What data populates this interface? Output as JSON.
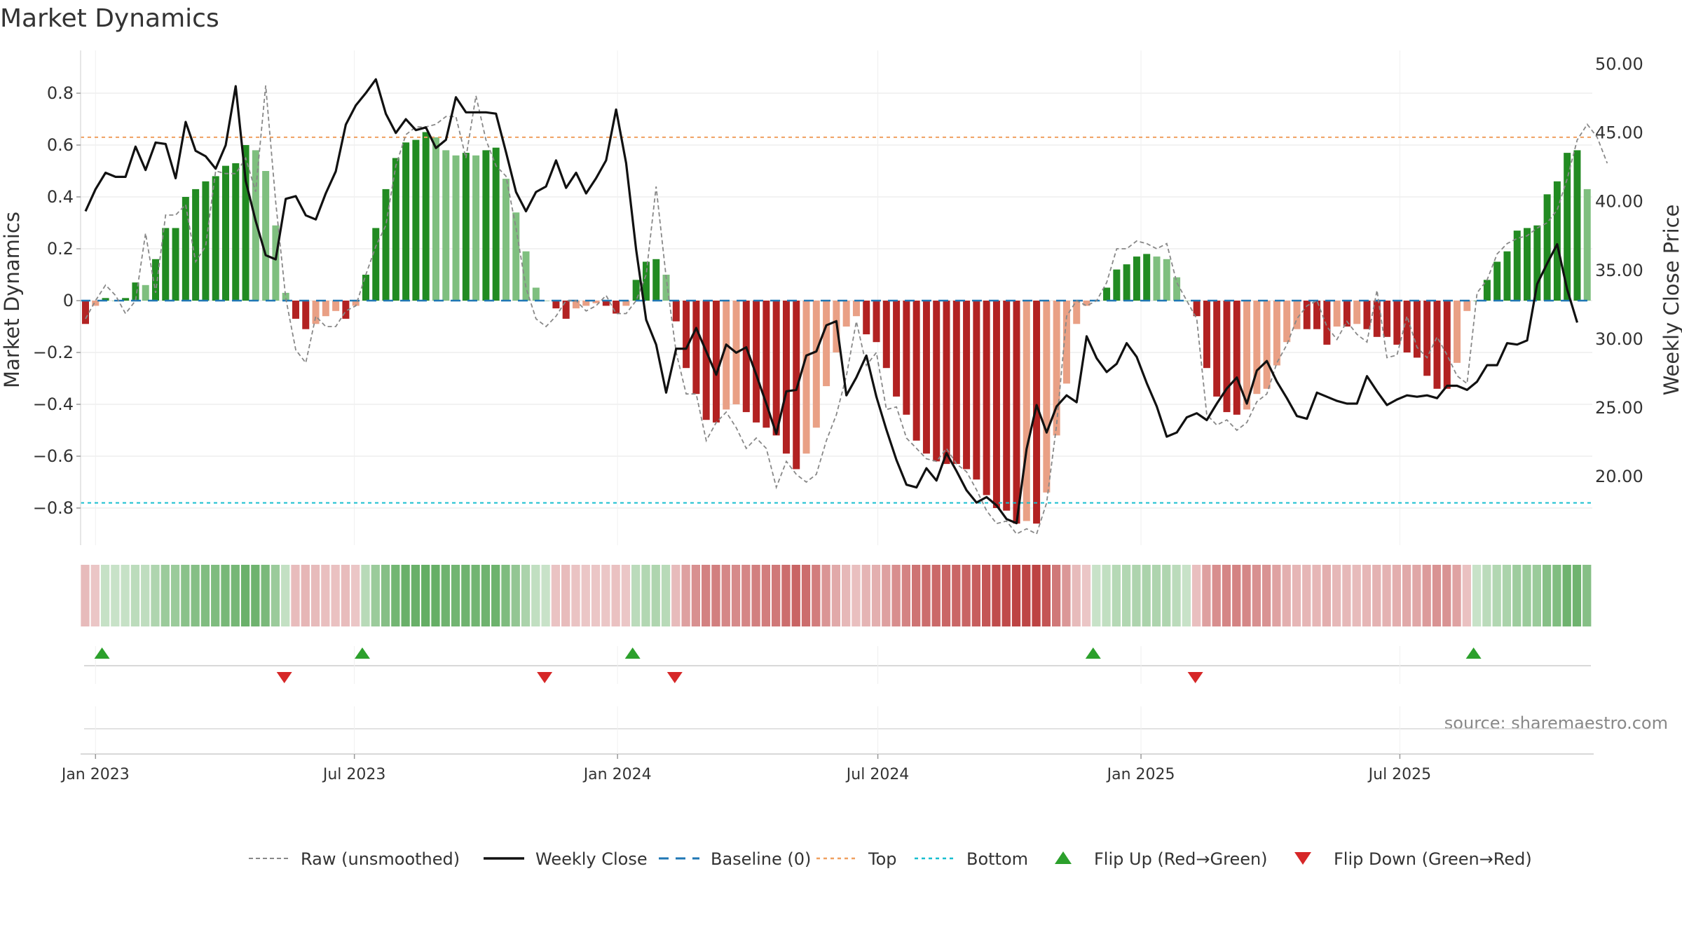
{
  "chart_data": {
    "type": "bar",
    "title": "Market Dynamics",
    "ylabel_left": "Market Dynamics",
    "ylabel_right": "Weekly Close Price",
    "ylim_left": [
      -0.93,
      0.96
    ],
    "ylim_right": [
      15.0,
      51.0
    ],
    "yticks_left": [
      0.8,
      0.6,
      0.4,
      0.2,
      0,
      -0.2,
      -0.4,
      -0.6,
      -0.8
    ],
    "yticks_left_labels": [
      "0.8",
      "0.6",
      "0.4",
      "0.2",
      "0",
      "−0.2",
      "−0.4",
      "−0.6",
      "−0.8"
    ],
    "yticks_right": [
      50,
      45,
      40,
      35,
      30,
      25,
      20
    ],
    "yticks_right_labels": [
      "50.00",
      "45.00",
      "40.00",
      "35.00",
      "30.00",
      "25.00",
      "20.00"
    ],
    "x_start": "2022-12-25",
    "x_step_days": 7,
    "xticks": [
      {
        "date": "2023-01-01",
        "label": "Jan 2023"
      },
      {
        "date": "2023-07-01",
        "label": "Jul 2023"
      },
      {
        "date": "2024-01-01",
        "label": "Jan 2024"
      },
      {
        "date": "2024-07-01",
        "label": "Jul 2024"
      },
      {
        "date": "2025-01-01",
        "label": "Jan 2025"
      },
      {
        "date": "2025-07-01",
        "label": "Jul 2025"
      }
    ],
    "top_level": 0.63,
    "bottom_level": -0.78,
    "bars": [
      -0.09,
      -0.02,
      0.01,
      0.0,
      0.01,
      0.07,
      0.06,
      0.16,
      0.28,
      0.28,
      0.4,
      0.43,
      0.46,
      0.48,
      0.52,
      0.53,
      0.6,
      0.58,
      0.5,
      0.29,
      0.03,
      -0.07,
      -0.11,
      -0.09,
      -0.06,
      -0.04,
      -0.07,
      -0.02,
      0.1,
      0.28,
      0.43,
      0.55,
      0.61,
      0.62,
      0.65,
      0.63,
      0.58,
      0.56,
      0.57,
      0.56,
      0.58,
      0.59,
      0.47,
      0.34,
      0.19,
      0.05,
      0.0,
      -0.03,
      -0.07,
      -0.03,
      -0.02,
      -0.01,
      -0.02,
      -0.05,
      -0.02,
      0.08,
      0.15,
      0.16,
      0.1,
      -0.08,
      -0.26,
      -0.36,
      -0.46,
      -0.47,
      -0.42,
      -0.4,
      -0.43,
      -0.47,
      -0.49,
      -0.52,
      -0.59,
      -0.65,
      -0.59,
      -0.49,
      -0.33,
      -0.2,
      -0.1,
      -0.06,
      -0.13,
      -0.16,
      -0.26,
      -0.37,
      -0.44,
      -0.54,
      -0.59,
      -0.62,
      -0.63,
      -0.63,
      -0.65,
      -0.69,
      -0.75,
      -0.8,
      -0.81,
      -0.86,
      -0.85,
      -0.86,
      -0.74,
      -0.52,
      -0.32,
      -0.09,
      -0.02,
      0.0,
      0.05,
      0.12,
      0.14,
      0.17,
      0.18,
      0.17,
      0.16,
      0.09,
      0.0,
      -0.06,
      -0.26,
      -0.37,
      -0.43,
      -0.44,
      -0.42,
      -0.36,
      -0.34,
      -0.25,
      -0.16,
      -0.11,
      -0.11,
      -0.11,
      -0.17,
      -0.1,
      -0.1,
      -0.09,
      -0.11,
      -0.14,
      -0.14,
      -0.17,
      -0.2,
      -0.22,
      -0.29,
      -0.34,
      -0.34,
      -0.24,
      -0.04,
      0.0,
      0.08,
      0.15,
      0.19,
      0.27,
      0.28,
      0.29,
      0.41,
      0.46,
      0.57,
      0.58,
      0.43
    ],
    "raw": [
      -0.07,
      0.0,
      0.06,
      0.02,
      -0.05,
      0.0,
      0.26,
      0.03,
      0.33,
      0.33,
      0.37,
      0.15,
      0.21,
      0.5,
      0.49,
      0.49,
      0.55,
      0.42,
      0.83,
      0.38,
      0.01,
      -0.19,
      -0.24,
      -0.06,
      -0.1,
      -0.1,
      -0.04,
      -0.02,
      0.1,
      0.21,
      0.29,
      0.52,
      0.64,
      0.67,
      0.67,
      0.68,
      0.71,
      0.71,
      0.55,
      0.79,
      0.62,
      0.52,
      0.48,
      0.28,
      0.05,
      -0.07,
      -0.1,
      -0.06,
      0.0,
      0.0,
      -0.04,
      -0.02,
      0.02,
      -0.05,
      -0.05,
      0.0,
      0.1,
      0.44,
      0.09,
      -0.2,
      -0.36,
      -0.36,
      -0.54,
      -0.47,
      -0.43,
      -0.49,
      -0.57,
      -0.53,
      -0.57,
      -0.72,
      -0.62,
      -0.67,
      -0.7,
      -0.67,
      -0.54,
      -0.44,
      -0.29,
      -0.08,
      -0.25,
      -0.2,
      -0.42,
      -0.41,
      -0.53,
      -0.57,
      -0.61,
      -0.62,
      -0.57,
      -0.63,
      -0.66,
      -0.73,
      -0.81,
      -0.86,
      -0.85,
      -0.9,
      -0.88,
      -0.9,
      -0.78,
      -0.48,
      -0.06,
      0.0,
      -0.02,
      0.0,
      0.07,
      0.2,
      0.2,
      0.23,
      0.22,
      0.2,
      0.22,
      0.07,
      0.0,
      -0.07,
      -0.44,
      -0.48,
      -0.46,
      -0.5,
      -0.47,
      -0.39,
      -0.36,
      -0.24,
      -0.17,
      -0.07,
      -0.02,
      0.0,
      -0.1,
      -0.15,
      -0.08,
      -0.13,
      -0.16,
      0.04,
      -0.22,
      -0.21,
      -0.06,
      -0.18,
      -0.22,
      -0.14,
      -0.21,
      -0.29,
      -0.32,
      0.03,
      0.08,
      0.18,
      0.22,
      0.24,
      0.25,
      0.28,
      0.3,
      0.35,
      0.47,
      0.62,
      0.68,
      0.63,
      0.53
    ],
    "price": [
      39.3,
      40.9,
      42.1,
      41.8,
      41.8,
      44.0,
      42.3,
      44.3,
      44.2,
      41.7,
      45.8,
      43.7,
      43.3,
      42.4,
      44.1,
      48.4,
      41.5,
      38.6,
      36.1,
      35.8,
      40.2,
      40.4,
      39.0,
      38.7,
      40.6,
      42.2,
      45.6,
      47.0,
      47.9,
      48.9,
      46.4,
      45.0,
      46.0,
      45.2,
      45.4,
      43.9,
      44.5,
      47.6,
      46.5,
      46.5,
      46.5,
      46.4,
      43.6,
      40.7,
      39.3,
      40.7,
      41.1,
      43.0,
      41.0,
      42.1,
      40.6,
      41.7,
      43.0,
      46.7,
      42.8,
      36.5,
      31.4,
      29.6,
      26.1,
      29.3,
      29.3,
      30.8,
      29.1,
      27.4,
      29.6,
      29.0,
      29.4,
      27.4,
      25.3,
      23.1,
      26.2,
      26.3,
      28.8,
      29.1,
      31.0,
      31.3,
      25.9,
      27.2,
      28.8,
      25.8,
      23.4,
      21.2,
      19.4,
      19.2,
      20.6,
      19.7,
      21.7,
      20.4,
      19.0,
      18.1,
      18.5,
      17.9,
      16.9,
      16.6,
      22.0,
      25.2,
      23.2,
      25.1,
      25.9,
      25.4,
      30.2,
      28.6,
      27.6,
      28.2,
      29.7,
      28.7,
      26.8,
      25.1,
      22.9,
      23.2,
      24.3,
      24.6,
      24.1,
      25.3,
      26.4,
      27.2,
      25.3,
      27.7,
      28.4,
      26.9,
      25.7,
      24.4,
      24.2,
      26.1,
      25.8,
      25.5,
      25.3,
      25.3,
      27.3,
      26.2,
      25.2,
      25.6,
      25.9,
      25.8,
      25.9,
      25.7,
      26.6,
      26.6,
      26.3,
      26.9,
      28.1,
      28.1,
      29.7,
      29.6,
      29.9,
      34.0,
      35.5,
      36.9,
      33.6,
      31.2
    ],
    "regimes": [
      {
        "dir": "down",
        "start": 0,
        "end": 1
      },
      {
        "dir": "up",
        "start": 2,
        "end": 19
      },
      {
        "dir": "down",
        "start": 20,
        "end": 27
      },
      {
        "dir": "up",
        "start": 28,
        "end": 45
      },
      {
        "dir": "down",
        "start": 46,
        "end": 54
      },
      {
        "dir": "up",
        "start": 55,
        "end": 58
      },
      {
        "dir": "down",
        "start": 59,
        "end": 100
      },
      {
        "dir": "up",
        "start": 101,
        "end": 110
      },
      {
        "dir": "down",
        "start": 111,
        "end": 138
      },
      {
        "dir": "up",
        "start": 139,
        "end": 149
      }
    ],
    "flips_up": [
      2,
      28,
      55,
      101,
      139
    ],
    "flips_down": [
      20,
      46,
      59,
      111
    ],
    "legend": [
      {
        "label": "Raw (unsmoothed)",
        "type": "raw"
      },
      {
        "label": "Weekly Close",
        "type": "close"
      },
      {
        "label": "Baseline (0)",
        "type": "baseline"
      },
      {
        "label": "Top",
        "type": "top"
      },
      {
        "label": "Bottom",
        "type": "bottom"
      },
      {
        "label": "Flip Up (Red→Green)",
        "type": "flip-up"
      },
      {
        "label": "Flip Down (Green→Red)",
        "type": "flip-down"
      }
    ],
    "legend_placement": "bottom",
    "grid": true,
    "source": "source: sharemaestro.com",
    "colors": {
      "up_strong": "#228b22",
      "up_light": "#7fbf7f",
      "down_strong": "#b22222",
      "down_light": "#e9a085",
      "raw_line": "#888888",
      "close_line": "#111111",
      "baseline": "#1f77b4",
      "top": "#f0a060",
      "bottom": "#17becf",
      "flip_up": "#2ca02c",
      "flip_down": "#d62728"
    }
  }
}
